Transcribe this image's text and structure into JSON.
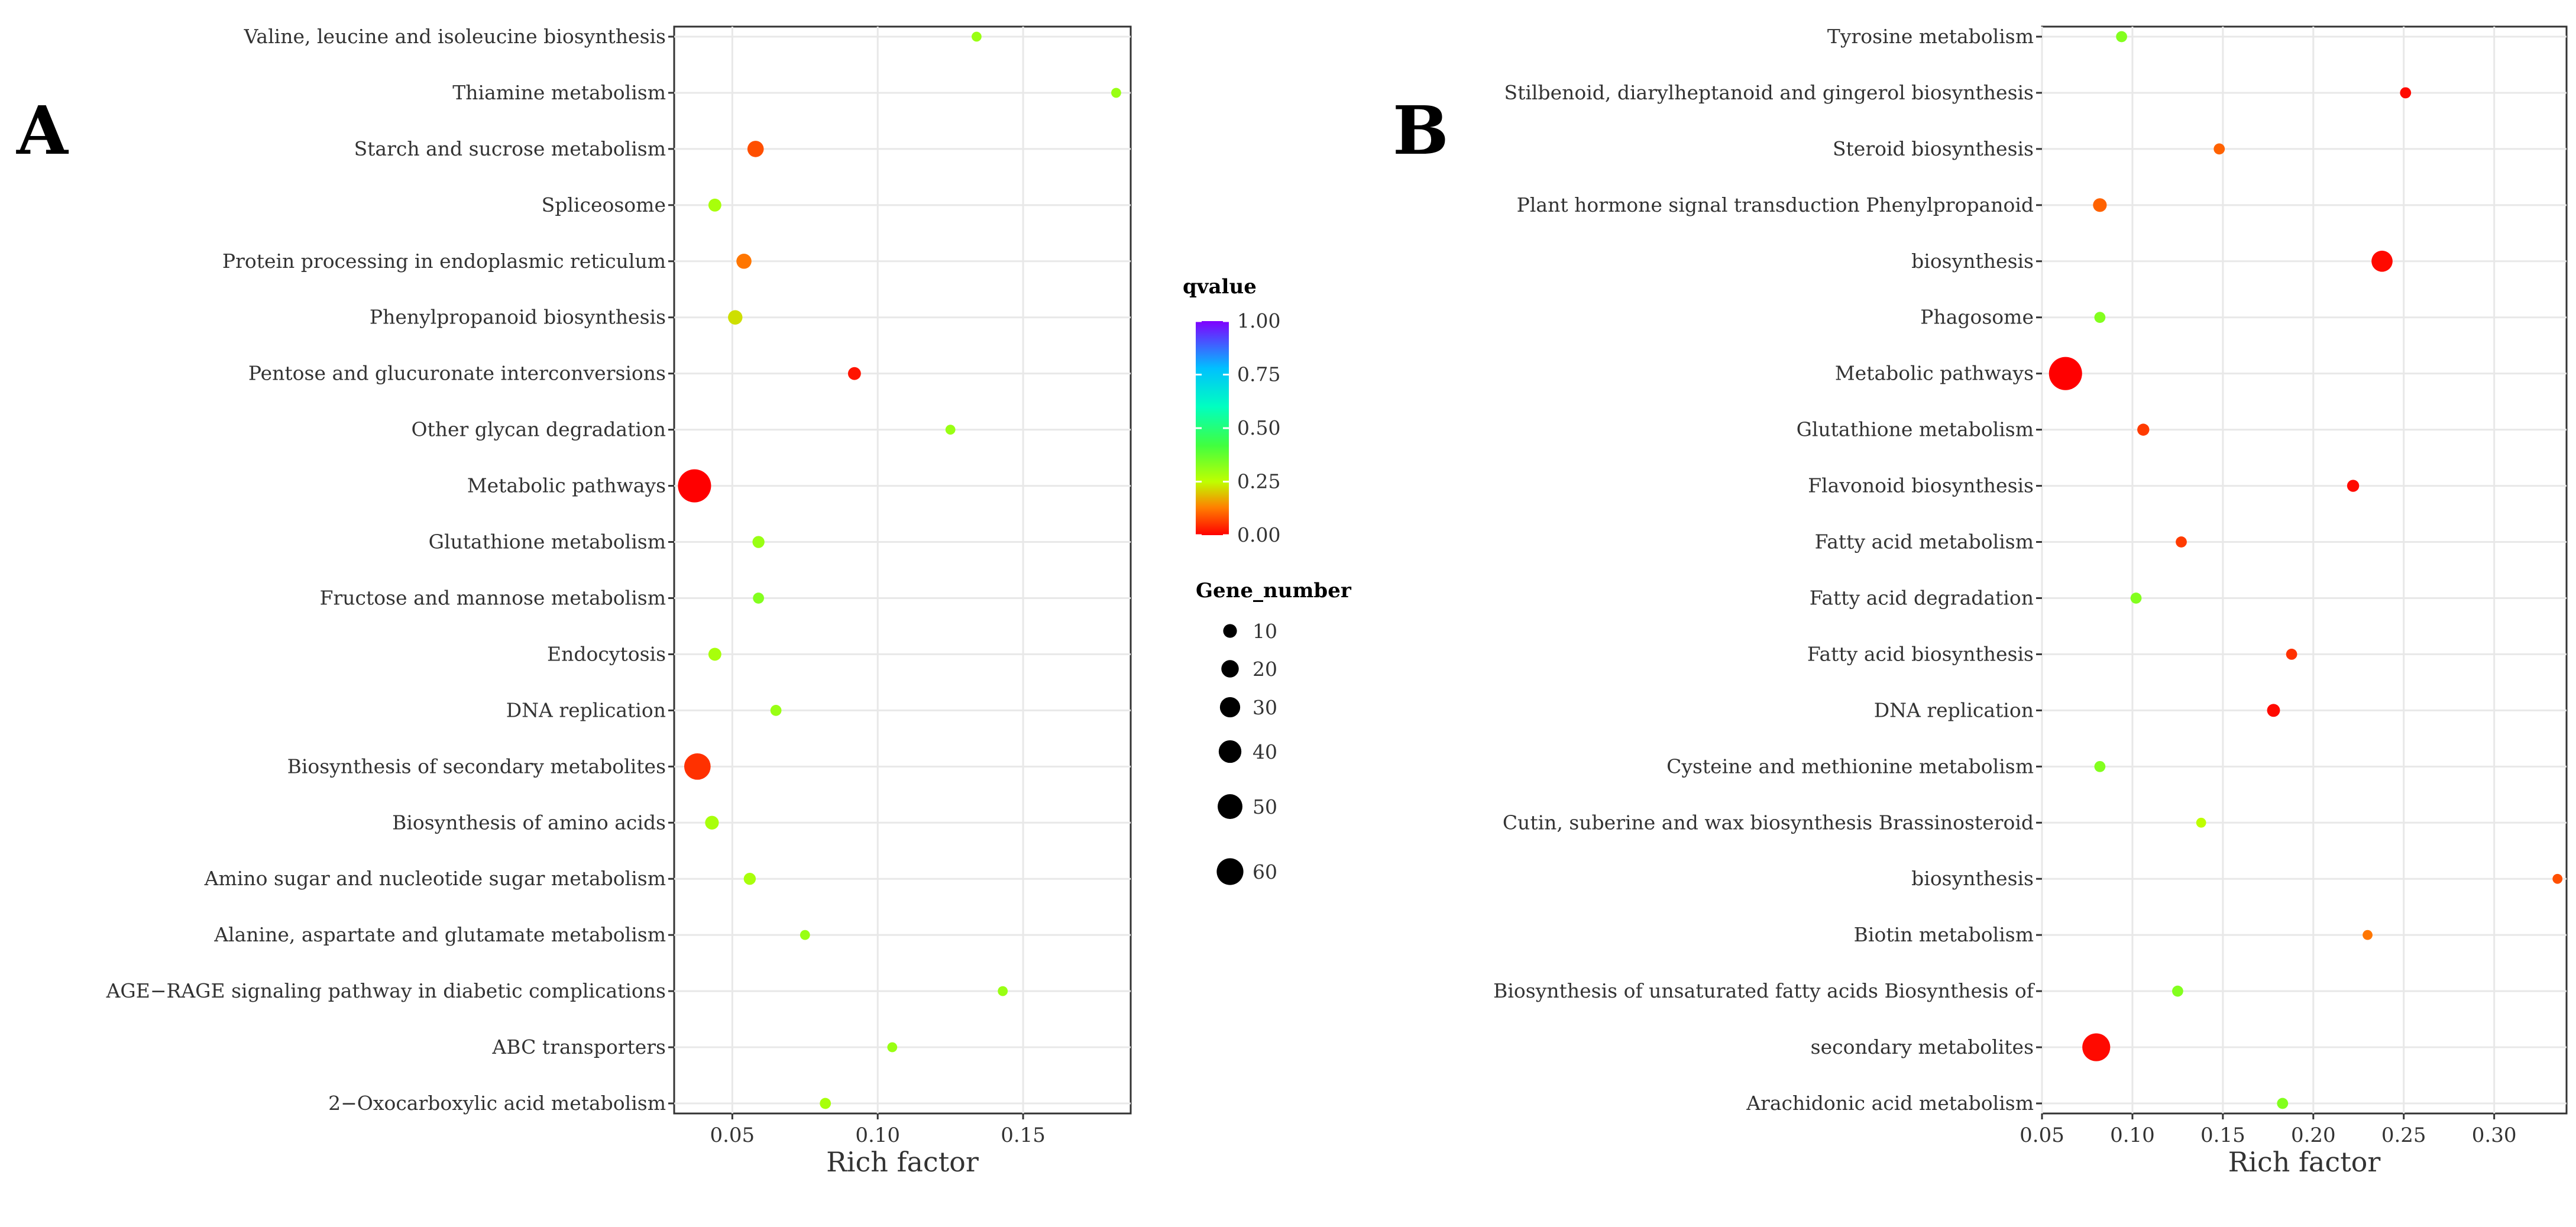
{
  "chart_data": [
    {
      "panel": "A",
      "type": "scatter",
      "xlabel": "Rich factor",
      "xlim": [
        0.03,
        0.187
      ],
      "xticks": [
        0.05,
        0.1,
        0.15
      ],
      "xtick_labels": [
        "0.05",
        "0.10",
        "0.15"
      ],
      "points": [
        {
          "label": "Valine, leucine and isoleucine biosynthesis",
          "x": 0.134,
          "gene_number": 2,
          "qvalue": 0.3
        },
        {
          "label": "Thiamine metabolism",
          "x": 0.182,
          "gene_number": 2,
          "qvalue": 0.3
        },
        {
          "label": "Starch and sucrose metabolism",
          "x": 0.058,
          "gene_number": 10,
          "qvalue": 0.08
        },
        {
          "label": "Spliceosome",
          "x": 0.044,
          "gene_number": 5,
          "qvalue": 0.28
        },
        {
          "label": "Protein processing in endoplasmic reticulum",
          "x": 0.054,
          "gene_number": 8,
          "qvalue": 0.12
        },
        {
          "label": "Phenylpropanoid biosynthesis",
          "x": 0.051,
          "gene_number": 7,
          "qvalue": 0.22
        },
        {
          "label": "Pentose and glucuronate interconversions",
          "x": 0.092,
          "gene_number": 5,
          "qvalue": 0.02
        },
        {
          "label": "Other glycan degradation",
          "x": 0.125,
          "gene_number": 2,
          "qvalue": 0.3
        },
        {
          "label": "Metabolic pathways",
          "x": 0.037,
          "gene_number": 60,
          "qvalue": 0.0
        },
        {
          "label": "Glutathione metabolism",
          "x": 0.059,
          "gene_number": 4,
          "qvalue": 0.3
        },
        {
          "label": "Fructose and mannose metabolism",
          "x": 0.059,
          "gene_number": 3,
          "qvalue": 0.33
        },
        {
          "label": "Endocytosis",
          "x": 0.044,
          "gene_number": 5,
          "qvalue": 0.28
        },
        {
          "label": "DNA replication",
          "x": 0.065,
          "gene_number": 3,
          "qvalue": 0.3
        },
        {
          "label": "Biosynthesis of secondary metabolites",
          "x": 0.038,
          "gene_number": 35,
          "qvalue": 0.05
        },
        {
          "label": "Biosynthesis of amino acids",
          "x": 0.043,
          "gene_number": 6,
          "qvalue": 0.28
        },
        {
          "label": "Amino sugar and nucleotide sugar metabolism",
          "x": 0.056,
          "gene_number": 4,
          "qvalue": 0.28
        },
        {
          "label": "Alanine, aspartate and glutamate metabolism",
          "x": 0.075,
          "gene_number": 2,
          "qvalue": 0.3
        },
        {
          "label": "AGE−RAGE signaling pathway in diabetic complications",
          "x": 0.143,
          "gene_number": 2,
          "qvalue": 0.3
        },
        {
          "label": "ABC transporters",
          "x": 0.105,
          "gene_number": 2,
          "qvalue": 0.3
        },
        {
          "label": "2−Oxocarboxylic acid metabolism",
          "x": 0.082,
          "gene_number": 3,
          "qvalue": 0.28
        }
      ]
    },
    {
      "panel": "B",
      "type": "scatter",
      "xlabel": "Rich factor",
      "xlim": [
        0.05,
        0.34
      ],
      "xticks": [
        0.05,
        0.1,
        0.15,
        0.2,
        0.25,
        0.3
      ],
      "xtick_labels": [
        "0.05",
        "0.10",
        "0.15",
        "0.20",
        "0.25",
        "0.30"
      ],
      "points": [
        {
          "label": "Tyrosine metabolism",
          "x": 0.094,
          "gene_number": 3,
          "qvalue": 0.33
        },
        {
          "label": "Stilbenoid, diarylheptanoid and gingerol biosynthesis",
          "x": 0.251,
          "gene_number": 3,
          "qvalue": 0.01
        },
        {
          "label": "Steroid biosynthesis",
          "x": 0.148,
          "gene_number": 3,
          "qvalue": 0.1
        },
        {
          "label": "Plant hormone signal transduction Phenylpropanoid",
          "x": 0.082,
          "gene_number": 6,
          "qvalue": 0.1
        },
        {
          "label": "biosynthesis",
          "x": 0.238,
          "gene_number": 20,
          "qvalue": 0.01
        },
        {
          "label": "Phagosome",
          "x": 0.082,
          "gene_number": 3,
          "qvalue": 0.33
        },
        {
          "label": "Metabolic pathways",
          "x": 0.063,
          "gene_number": 60,
          "qvalue": 0.0
        },
        {
          "label": "Glutathione metabolism",
          "x": 0.106,
          "gene_number": 4,
          "qvalue": 0.06
        },
        {
          "label": "Flavonoid biosynthesis",
          "x": 0.222,
          "gene_number": 4,
          "qvalue": 0.01
        },
        {
          "label": "Fatty acid metabolism",
          "x": 0.127,
          "gene_number": 3,
          "qvalue": 0.06
        },
        {
          "label": "Fatty acid degradation",
          "x": 0.102,
          "gene_number": 3,
          "qvalue": 0.33
        },
        {
          "label": "Fatty acid biosynthesis",
          "x": 0.188,
          "gene_number": 3,
          "qvalue": 0.05
        },
        {
          "label": "DNA replication",
          "x": 0.178,
          "gene_number": 5,
          "qvalue": 0.01
        },
        {
          "label": "Cysteine and methionine metabolism",
          "x": 0.082,
          "gene_number": 3,
          "qvalue": 0.33
        },
        {
          "label": "Cutin, suberine and wax biosynthesis Brassinosteroid",
          "x": 0.138,
          "gene_number": 2,
          "qvalue": 0.25
        },
        {
          "label": "biosynthesis",
          "x": 0.335,
          "gene_number": 2,
          "qvalue": 0.08
        },
        {
          "label": "Biotin metabolism",
          "x": 0.23,
          "gene_number": 2,
          "qvalue": 0.12
        },
        {
          "label": "Biosynthesis of unsaturated fatty acids Biosynthesis of",
          "x": 0.125,
          "gene_number": 3,
          "qvalue": 0.33
        },
        {
          "label": "secondary metabolites",
          "x": 0.08,
          "gene_number": 40,
          "qvalue": 0.01
        },
        {
          "label": "Arachidonic acid metabolism",
          "x": 0.183,
          "gene_number": 3,
          "qvalue": 0.33
        }
      ]
    }
  ],
  "legend": {
    "qvalue_title": "qvalue",
    "qvalue_ticks": [
      "1.00",
      "0.75",
      "0.50",
      "0.25",
      "0.00"
    ],
    "qvalue_tick_values": [
      1.0,
      0.75,
      0.5,
      0.25,
      0.0
    ],
    "colors": {
      "low": "#ff0000",
      "mid_low": "#99ff00",
      "mid": "#00ff80",
      "mid_high": "#00d5ff",
      "high": "#8000ff"
    },
    "gene_title": "Gene_number",
    "gene_sizes": [
      10,
      20,
      30,
      40,
      50,
      60
    ],
    "gene_labels": [
      "10",
      "20",
      "30",
      "40",
      "50",
      "60"
    ]
  }
}
